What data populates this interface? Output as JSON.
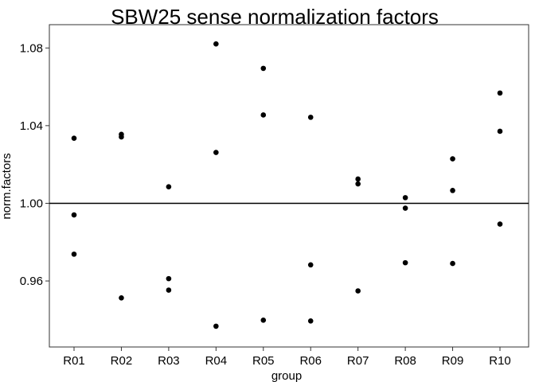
{
  "chart_data": {
    "type": "scatter",
    "title": "SBW25 sense normalization factors",
    "xlabel": "group",
    "ylabel": "norm.factors",
    "categories": [
      "R01",
      "R02",
      "R03",
      "R04",
      "R05",
      "R06",
      "R07",
      "R08",
      "R09",
      "R10"
    ],
    "y_ticks": [
      0.96,
      1.0,
      1.04,
      1.08
    ],
    "y_tick_labels": [
      "0.96",
      "1.00",
      "1.04",
      "1.08"
    ],
    "ylim": [
      0.926,
      1.092
    ],
    "reference_line": 1.0,
    "points": [
      {
        "x": "R01",
        "y": 1.0335
      },
      {
        "x": "R01",
        "y": 0.994
      },
      {
        "x": "R01",
        "y": 0.9738
      },
      {
        "x": "R02",
        "y": 1.0355
      },
      {
        "x": "R02",
        "y": 1.0342
      },
      {
        "x": "R02",
        "y": 0.9513
      },
      {
        "x": "R03",
        "y": 1.0085
      },
      {
        "x": "R03",
        "y": 0.9612
      },
      {
        "x": "R03",
        "y": 0.9553
      },
      {
        "x": "R04",
        "y": 1.0821
      },
      {
        "x": "R04",
        "y": 1.0262
      },
      {
        "x": "R04",
        "y": 0.9367
      },
      {
        "x": "R05",
        "y": 1.0695
      },
      {
        "x": "R05",
        "y": 1.0455
      },
      {
        "x": "R05",
        "y": 0.9398
      },
      {
        "x": "R06",
        "y": 1.0443
      },
      {
        "x": "R06",
        "y": 0.9683
      },
      {
        "x": "R06",
        "y": 0.9394
      },
      {
        "x": "R07",
        "y": 1.0125
      },
      {
        "x": "R07",
        "y": 1.01
      },
      {
        "x": "R07",
        "y": 0.9549
      },
      {
        "x": "R08",
        "y": 1.0029
      },
      {
        "x": "R08",
        "y": 0.9975
      },
      {
        "x": "R08",
        "y": 0.9694
      },
      {
        "x": "R09",
        "y": 1.0229
      },
      {
        "x": "R09",
        "y": 1.0066
      },
      {
        "x": "R09",
        "y": 0.969
      },
      {
        "x": "R10",
        "y": 1.0568
      },
      {
        "x": "R10",
        "y": 1.0371
      },
      {
        "x": "R10",
        "y": 0.9893
      }
    ],
    "grid": false,
    "point_color": "#000000"
  }
}
